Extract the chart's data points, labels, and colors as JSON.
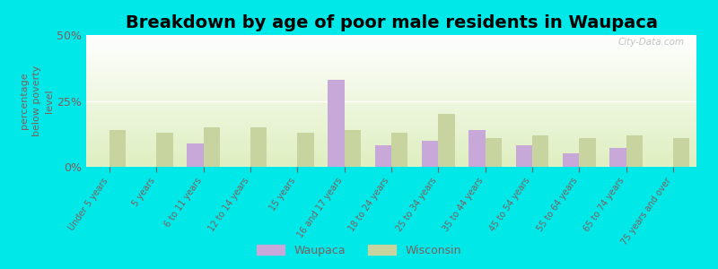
{
  "title": "Breakdown by age of poor male residents in Waupaca",
  "categories": [
    "Under 5 years",
    "5 years",
    "6 to 11 years",
    "12 to 14 years",
    "15 years",
    "16 and 17 years",
    "18 to 24 years",
    "25 to 34 years",
    "35 to 44 years",
    "45 to 54 years",
    "55 to 64 years",
    "65 to 74 years",
    "75 years and over"
  ],
  "waupaca": [
    0,
    0,
    9,
    0,
    0,
    33,
    8,
    10,
    14,
    8,
    5,
    7,
    0
  ],
  "wisconsin": [
    14,
    13,
    15,
    15,
    13,
    14,
    13,
    20,
    11,
    12,
    11,
    12,
    11
  ],
  "waupaca_color": "#c8a8d8",
  "wisconsin_color": "#c8d4a0",
  "background_outer": "#00e8e8",
  "ylabel": "percentage\nbelow poverty\nlevel",
  "ylim": [
    0,
    50
  ],
  "yticks": [
    0,
    25,
    50
  ],
  "ytick_labels": [
    "0%",
    "25%",
    "50%"
  ],
  "bar_width": 0.35,
  "title_fontsize": 14,
  "axis_color": "#806060",
  "legend_waupaca": "Waupaca",
  "legend_wisconsin": "Wisconsin",
  "watermark": "City-Data.com",
  "plot_bg_top": "#ffffff",
  "plot_bg_bottom": "#deefc0"
}
